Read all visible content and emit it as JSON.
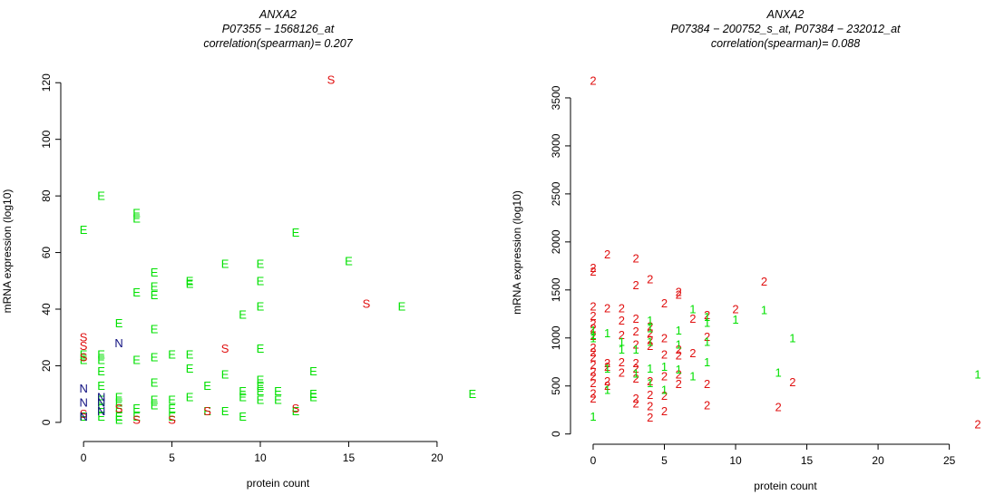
{
  "chart_data": [
    {
      "type": "scatter",
      "title": [
        "ANXA2",
        "P07355 − 1568126_at",
        "correlation(spearman)= 0.207"
      ],
      "x_label": "protein count",
      "y_label": "mRNA expression (log10)",
      "xlim": [
        -0.88,
        22.88
      ],
      "ylim": [
        -4.84,
        125.84
      ],
      "xticks": [
        0,
        5,
        10,
        15,
        20
      ],
      "yticks": [
        0,
        20,
        40,
        60,
        80,
        100,
        120
      ],
      "series": [
        {
          "marker": "E",
          "color": "#00e000",
          "x": [
            0,
            1,
            3,
            3,
            0,
            0,
            0,
            1,
            1,
            1,
            1,
            1,
            1,
            1,
            2,
            2,
            2,
            2,
            2,
            2,
            3,
            3,
            3,
            3,
            4,
            4,
            4,
            4,
            4,
            4,
            4,
            4,
            5,
            5,
            5,
            5,
            6,
            6,
            6,
            6,
            6,
            7,
            7,
            8,
            8,
            8,
            9,
            9,
            9,
            9,
            10,
            10,
            10,
            10,
            10,
            10,
            10,
            10,
            11,
            11,
            12,
            12,
            13,
            13,
            13,
            15,
            18,
            22
          ],
          "values": [
            68,
            80,
            74,
            72,
            24,
            22,
            2,
            24,
            22,
            18,
            13,
            8,
            5,
            2,
            35,
            9,
            7,
            5,
            2,
            1,
            46,
            22,
            5,
            2,
            53,
            48,
            45,
            33,
            23,
            14,
            8,
            6,
            24,
            8,
            5,
            2,
            50,
            49,
            24,
            19,
            9,
            13,
            4,
            56,
            17,
            4,
            38,
            11,
            9,
            2,
            56,
            50,
            41,
            26,
            15,
            13,
            11,
            8,
            11,
            8,
            67,
            4,
            18,
            10,
            9,
            57,
            41,
            10
          ]
        },
        {
          "marker": "S",
          "color": "#e01010",
          "x": [
            14,
            16,
            0,
            0,
            0,
            0,
            2,
            3,
            5,
            7,
            8,
            12
          ],
          "values": [
            121,
            42,
            30,
            27,
            23,
            3,
            5,
            1,
            1,
            4,
            26,
            5
          ]
        },
        {
          "marker": "N",
          "color": "#101080",
          "x": [
            2,
            0,
            0,
            0,
            1,
            1,
            1
          ],
          "values": [
            28,
            12,
            7,
            2,
            9,
            7,
            4
          ]
        }
      ]
    },
    {
      "type": "scatter",
      "title": [
        "ANXA2",
        "P07384 − 200752_s_at, P07384 − 232012_at",
        "correlation(spearman)= 0.088"
      ],
      "x_label": "protein count",
      "y_label": "mRNA expression (log10)",
      "xlim": [
        -1.08,
        28.08
      ],
      "ylim": [
        -50,
        3830
      ],
      "xticks": [
        0,
        5,
        10,
        15,
        20,
        25
      ],
      "yticks": [
        0,
        500,
        1000,
        1500,
        2000,
        2500,
        3000,
        3500
      ],
      "series": [
        {
          "marker": "2",
          "color": "#e01010",
          "x": [
            0,
            0,
            0,
            1,
            3,
            3,
            4,
            5,
            6,
            6,
            12,
            10,
            8,
            7,
            6,
            0,
            0,
            0,
            0,
            0,
            0,
            0,
            0,
            0,
            0,
            0,
            0,
            0,
            0,
            1,
            1,
            1,
            1,
            1,
            2,
            2,
            2,
            2,
            2,
            3,
            3,
            3,
            3,
            3,
            3,
            3,
            3,
            4,
            4,
            4,
            4,
            4,
            4,
            4,
            4,
            5,
            5,
            5,
            5,
            5,
            6,
            6,
            6,
            7,
            8,
            8,
            8,
            13,
            14,
            27
          ],
          "values": [
            3680,
            1730,
            1690,
            1870,
            1830,
            1550,
            1610,
            1360,
            1480,
            1450,
            1590,
            1300,
            1240,
            1200,
            880,
            1330,
            1230,
            1150,
            1100,
            1020,
            900,
            850,
            800,
            720,
            650,
            600,
            530,
            420,
            370,
            1310,
            740,
            700,
            550,
            500,
            1310,
            1180,
            1030,
            750,
            640,
            1200,
            1070,
            930,
            740,
            680,
            580,
            370,
            320,
            1120,
            1050,
            980,
            920,
            550,
            410,
            290,
            170,
            1000,
            830,
            600,
            400,
            240,
            820,
            620,
            520,
            840,
            1010,
            520,
            300,
            280,
            540,
            100
          ]
        },
        {
          "marker": "1",
          "color": "#00e000",
          "x": [
            0,
            0,
            0,
            0,
            1,
            1,
            1,
            2,
            2,
            3,
            3,
            4,
            4,
            4,
            4,
            4,
            5,
            5,
            6,
            6,
            6,
            7,
            7,
            8,
            8,
            8,
            8,
            10,
            12,
            13,
            14,
            27
          ],
          "values": [
            180,
            1000,
            1080,
            1030,
            1050,
            680,
            460,
            880,
            960,
            880,
            630,
            1180,
            1100,
            960,
            680,
            530,
            700,
            460,
            1080,
            930,
            670,
            1300,
            600,
            1220,
            1160,
            960,
            750,
            1190,
            1290,
            640,
            1000,
            620
          ]
        }
      ]
    }
  ]
}
